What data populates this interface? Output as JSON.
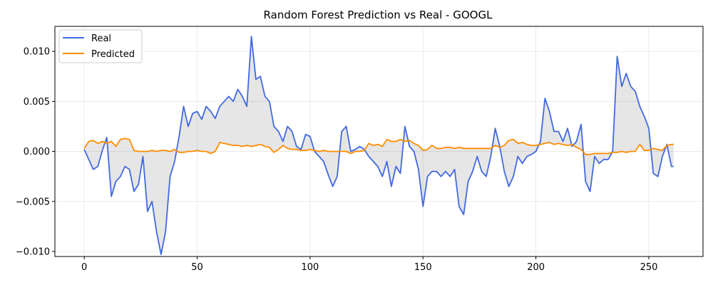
{
  "chart_data": {
    "type": "line",
    "title": "Random Forest Prediction vs Real - GOOGL",
    "xlabel": "",
    "ylabel": "",
    "xlim": [
      -13,
      274
    ],
    "ylim": [
      -0.0105,
      0.0125
    ],
    "xticks": [
      0,
      50,
      100,
      150,
      200,
      250
    ],
    "xtick_labels": [
      "0",
      "50",
      "100",
      "150",
      "200",
      "250"
    ],
    "yticks": [
      -0.01,
      -0.005,
      0.0,
      0.005,
      0.01
    ],
    "ytick_labels": [
      "−0.010",
      "−0.005",
      "0.000",
      "0.005",
      "0.010"
    ],
    "grid": true,
    "legend": "upper-left",
    "fill_between": {
      "color": "#808080",
      "alpha": 0.2
    },
    "colors": {
      "real": "#4169e1",
      "predicted": "#ff8c00"
    },
    "series": [
      {
        "name": "Real",
        "x": [
          0,
          2,
          4,
          6,
          8,
          10,
          12,
          14,
          16,
          18,
          20,
          22,
          24,
          26,
          28,
          30,
          32,
          34,
          36,
          38,
          40,
          42,
          44,
          46,
          48,
          50,
          52,
          54,
          56,
          58,
          60,
          62,
          64,
          66,
          68,
          70,
          72,
          74,
          76,
          78,
          80,
          82,
          84,
          86,
          88,
          90,
          92,
          94,
          96,
          98,
          100,
          102,
          104,
          106,
          108,
          110,
          112,
          114,
          116,
          118,
          120,
          122,
          124,
          126,
          128,
          130,
          132,
          134,
          136,
          138,
          140,
          142,
          144,
          146,
          148,
          150,
          152,
          154,
          156,
          158,
          160,
          162,
          164,
          166,
          168,
          170,
          172,
          174,
          176,
          178,
          180,
          182,
          184,
          186,
          188,
          190,
          192,
          194,
          196,
          198,
          200,
          202,
          204,
          206,
          208,
          210,
          212,
          214,
          216,
          218,
          220,
          222,
          224,
          226,
          228,
          230,
          232,
          234,
          236,
          238,
          240,
          242,
          244,
          246,
          248,
          250,
          252,
          254,
          256,
          258,
          260,
          261
        ],
        "values": [
          0.0002,
          -0.0008,
          -0.0018,
          -0.0015,
          0.0001,
          0.0014,
          -0.0045,
          -0.003,
          -0.0025,
          -0.0015,
          -0.0018,
          -0.004,
          -0.0033,
          -0.0005,
          -0.006,
          -0.005,
          -0.008,
          -0.0103,
          -0.008,
          -0.0025,
          -0.001,
          0.0015,
          0.0045,
          0.0025,
          0.0038,
          0.004,
          0.0032,
          0.0045,
          0.004,
          0.0033,
          0.0045,
          0.005,
          0.0055,
          0.005,
          0.0062,
          0.0055,
          0.0045,
          0.0115,
          0.0072,
          0.0075,
          0.0055,
          0.005,
          0.0025,
          0.002,
          0.001,
          0.0025,
          0.002,
          0.0005,
          0.0002,
          0.0017,
          0.0015,
          0.0,
          -0.0005,
          -0.001,
          -0.0023,
          -0.0035,
          -0.0025,
          0.002,
          0.0025,
          0.0,
          0.0002,
          0.0005,
          0.0002,
          -0.0005,
          -0.001,
          -0.0015,
          -0.0025,
          -0.001,
          -0.0035,
          -0.0015,
          -0.0022,
          0.0025,
          0.0005,
          0.0,
          -0.0018,
          -0.0055,
          -0.0025,
          -0.002,
          -0.002,
          -0.0025,
          -0.002,
          -0.0025,
          -0.0018,
          -0.0055,
          -0.0063,
          -0.003,
          -0.002,
          -0.0005,
          -0.002,
          -0.0025,
          -0.0005,
          0.0023,
          0.0005,
          -0.002,
          -0.0035,
          -0.0025,
          -0.0005,
          -0.0012,
          -0.0005,
          -0.0003,
          0.0,
          0.001,
          0.0053,
          0.004,
          0.002,
          0.002,
          0.001,
          0.0023,
          0.0005,
          0.001,
          0.0027,
          -0.003,
          -0.004,
          -0.0005,
          -0.0012,
          -0.0008,
          -0.0008,
          0.0,
          0.0095,
          0.0065,
          0.0078,
          0.0065,
          0.006,
          0.0045,
          0.0035,
          0.0023,
          -0.0022,
          -0.0025,
          -0.0005,
          0.0007,
          -0.0015,
          -0.0015
        ]
      },
      {
        "name": "Predicted",
        "x": [
          0,
          2,
          4,
          6,
          8,
          10,
          12,
          14,
          16,
          18,
          20,
          22,
          24,
          26,
          28,
          30,
          32,
          34,
          36,
          38,
          40,
          42,
          44,
          46,
          48,
          50,
          52,
          54,
          56,
          58,
          60,
          62,
          64,
          66,
          68,
          70,
          72,
          74,
          76,
          78,
          80,
          82,
          84,
          86,
          88,
          90,
          92,
          94,
          96,
          98,
          100,
          102,
          104,
          106,
          108,
          110,
          112,
          114,
          116,
          118,
          120,
          122,
          124,
          126,
          128,
          130,
          132,
          134,
          136,
          138,
          140,
          142,
          144,
          146,
          148,
          150,
          152,
          154,
          156,
          158,
          160,
          162,
          164,
          166,
          168,
          170,
          172,
          174,
          176,
          178,
          180,
          182,
          184,
          186,
          188,
          190,
          192,
          194,
          196,
          198,
          200,
          202,
          204,
          206,
          208,
          210,
          212,
          214,
          216,
          218,
          220,
          222,
          224,
          226,
          228,
          230,
          232,
          234,
          236,
          238,
          240,
          242,
          244,
          246,
          248,
          250,
          252,
          254,
          256,
          258,
          260,
          261
        ],
        "values": [
          0.0003,
          0.001,
          0.0011,
          0.0008,
          0.001,
          0.0008,
          0.001,
          0.0005,
          0.0012,
          0.0013,
          0.0012,
          0.0001,
          0.0,
          0.0,
          0.0,
          0.0001,
          0.0,
          0.0001,
          0.0001,
          0.0,
          0.0002,
          -0.0001,
          -0.0001,
          0.0,
          0.0,
          0.0001,
          0.0,
          0.0,
          -0.0002,
          0.0,
          0.0009,
          0.0008,
          0.0007,
          0.0006,
          0.0006,
          0.0005,
          0.0006,
          0.0005,
          0.0006,
          0.0007,
          0.0005,
          0.0004,
          -0.0001,
          0.0002,
          0.0006,
          0.0003,
          0.0002,
          0.0002,
          0.0001,
          0.0001,
          0.0002,
          0.0001,
          0.0,
          0.0001,
          0.0,
          0.0,
          0.0,
          0.0,
          0.0,
          -0.0002,
          0.0,
          0.0,
          0.0001,
          0.0008,
          0.0006,
          0.0007,
          0.0005,
          0.0012,
          0.001,
          0.001,
          0.0012,
          0.001,
          0.0011,
          0.0008,
          0.0006,
          0.0001,
          0.0002,
          0.0006,
          0.0003,
          0.0003,
          0.0004,
          0.0004,
          0.0003,
          0.0004,
          0.0003,
          0.0003,
          0.0003,
          0.0003,
          0.0003,
          0.0003,
          0.0003,
          0.0006,
          0.0004,
          0.0006,
          0.0011,
          0.0012,
          0.0008,
          0.0009,
          0.0007,
          0.0006,
          0.0006,
          0.0007,
          0.0008,
          0.0009,
          0.0007,
          0.0008,
          0.0007,
          0.0006,
          0.0007,
          0.0004,
          0.0002,
          -0.0003,
          -0.0003,
          -0.0002,
          -0.0002,
          -0.0002,
          -0.0002,
          -0.0001,
          -0.0001,
          0.0,
          -0.0001,
          0.0,
          0.0,
          0.0007,
          0.0001,
          0.0001,
          0.0003,
          0.0002,
          0.0001,
          0.0006,
          0.0007,
          0.0007
        ]
      }
    ]
  }
}
